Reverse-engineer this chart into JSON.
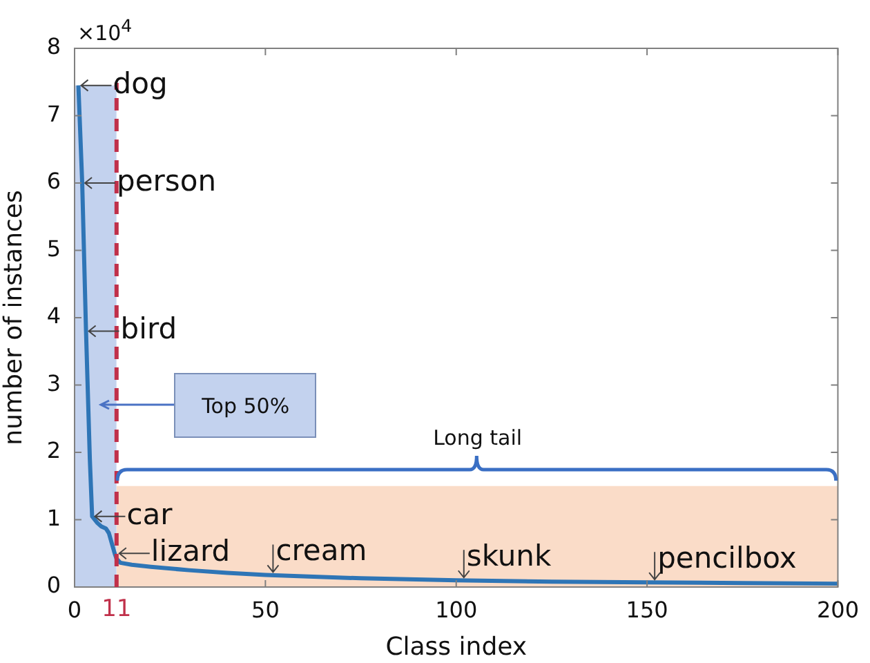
{
  "chart_data": {
    "type": "line",
    "xlabel": "Class index",
    "ylabel": "number of instances",
    "xlim": [
      0,
      200
    ],
    "xticks": [
      0,
      50,
      100,
      150,
      200
    ],
    "ylim": [
      0,
      8
    ],
    "yticks": [
      0,
      1,
      2,
      3,
      4,
      5,
      6,
      7,
      8
    ],
    "grid": false,
    "legend": false,
    "marker": "none",
    "line_style": "solid",
    "series": [
      {
        "type": "area",
        "color": "#c3d2ee",
        "x": [
          0,
          11
        ],
        "values": [
          7.45,
          7.45
        ]
      },
      {
        "type": "area",
        "color": "#fadcc8",
        "x": [
          11,
          200
        ],
        "values": [
          1.5,
          1.5
        ]
      },
      {
        "color": "#2e75b6",
        "x": [
          1,
          2,
          3,
          4,
          4.6,
          6,
          7,
          8.2,
          9,
          10,
          10.5,
          11,
          12,
          15,
          20,
          30,
          40,
          50,
          60,
          75,
          100,
          125,
          150,
          175,
          200
        ],
        "values": [
          7.45,
          6.0,
          3.8,
          1.9,
          1.05,
          0.95,
          0.9,
          0.87,
          0.8,
          0.6,
          0.5,
          0.42,
          0.36,
          0.33,
          0.3,
          0.25,
          0.21,
          0.18,
          0.16,
          0.13,
          0.1,
          0.08,
          0.07,
          0.06,
          0.05
        ]
      }
    ],
    "ref_lines": [
      {
        "axis": "x",
        "value": 11,
        "label": "11",
        "color": "#c0304a",
        "line_style": "dashed"
      }
    ],
    "annotations": [
      "×10$^{4}$",
      {
        "text": "dog",
        "x": 1,
        "y": 7.45
      },
      {
        "text": "person",
        "x": 2,
        "y": 6.0
      },
      {
        "text": "bird",
        "x": 3,
        "y": 3.8
      },
      "Top 50%",
      "Long tail",
      {
        "text": "car",
        "x": 4.6,
        "y": 1.05
      },
      {
        "text": "lizard",
        "x": 11,
        "y": 0.5
      },
      {
        "text": "cream",
        "x": 52,
        "y": 0.18
      },
      {
        "text": "skunk",
        "x": 102,
        "y": 0.1
      },
      {
        "text": "pencilbox",
        "x": 152,
        "y": 0.07
      }
    ]
  }
}
